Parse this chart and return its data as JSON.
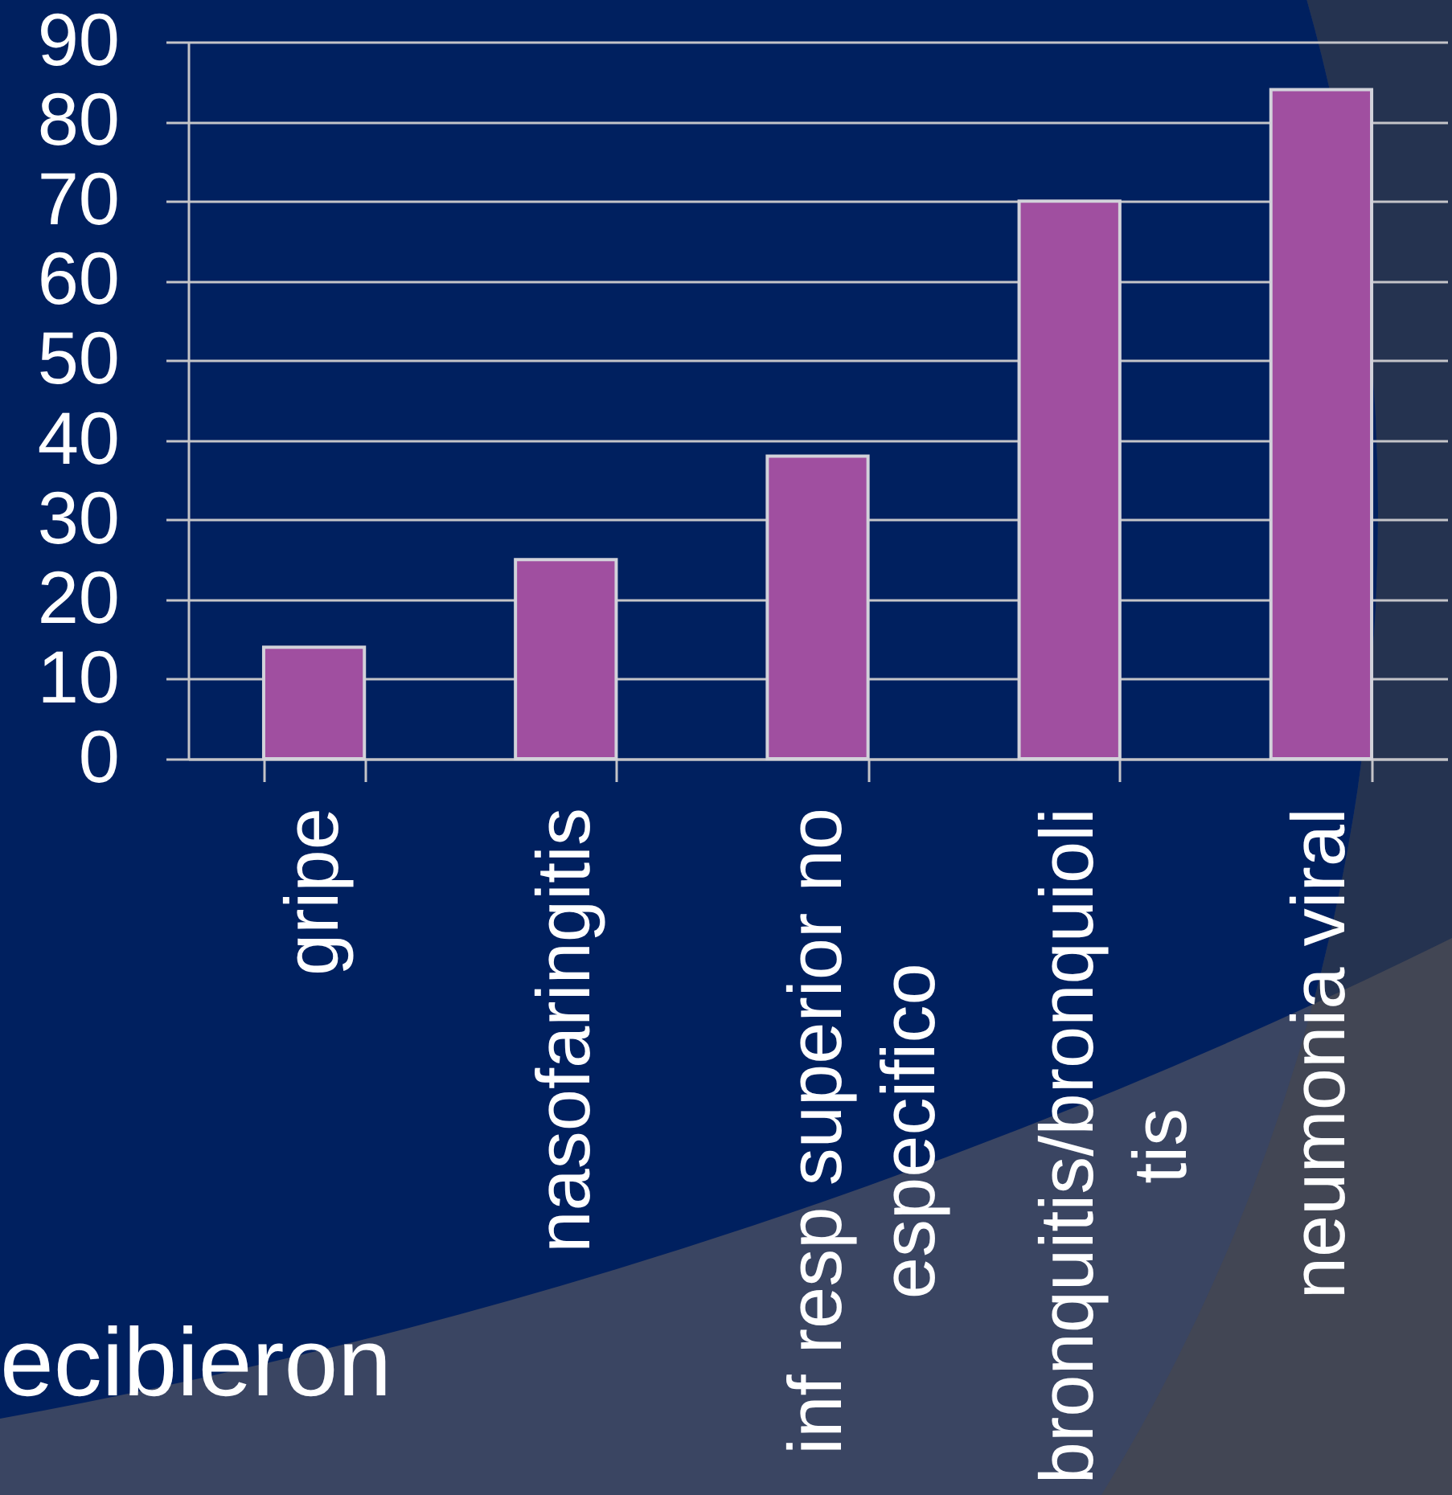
{
  "chart_data": {
    "type": "bar",
    "categories": [
      "gripe",
      "nasofaringitis",
      "inf resp superior no especifico",
      "bronquitis/bronquiolitis",
      "neumonia viral"
    ],
    "values": [
      14,
      25,
      38,
      70,
      84
    ],
    "color": "#a04fa0",
    "ylim": [
      0,
      90
    ],
    "yticks": [
      0,
      10,
      20,
      30,
      40,
      50,
      60,
      70,
      80,
      90
    ],
    "grid": "y",
    "annotations": [
      "ecibieron"
    ]
  }
}
